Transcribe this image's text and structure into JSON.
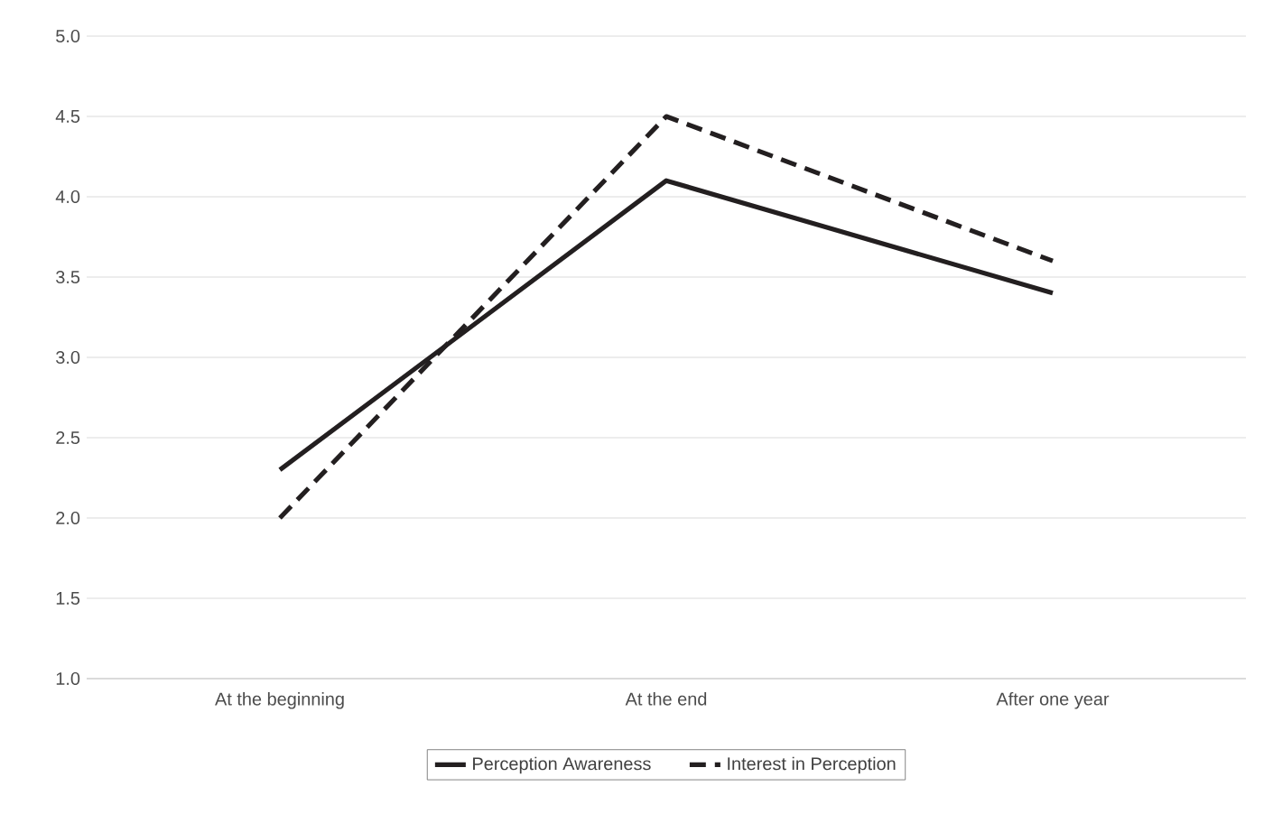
{
  "chart_data": {
    "type": "line",
    "categories": [
      "At the beginning",
      "At the end",
      "After one year"
    ],
    "series": [
      {
        "name": "Perception Awareness",
        "color": "#231f20",
        "values": [
          2.3,
          4.1,
          3.4
        ],
        "line_style": "solid"
      },
      {
        "name": "Interest in Perception",
        "color": "#231f20",
        "values": [
          2.0,
          4.5,
          3.6
        ],
        "line_style": "dashed"
      }
    ],
    "ylim": [
      1.0,
      5.0
    ],
    "yticks": [
      {
        "value": 1.0,
        "label": "1.0"
      },
      {
        "value": 1.5,
        "label": "1.5"
      },
      {
        "value": 2.0,
        "label": "2.0"
      },
      {
        "value": 2.5,
        "label": "2.5"
      },
      {
        "value": 3.0,
        "label": "3.0"
      },
      {
        "value": 3.5,
        "label": "3.5"
      },
      {
        "value": 4.0,
        "label": "4.0"
      },
      {
        "value": 4.5,
        "label": "4.5"
      },
      {
        "value": 5.0,
        "label": "5.0"
      }
    ],
    "grid": "y",
    "legend": "bottom",
    "marker": "none"
  }
}
